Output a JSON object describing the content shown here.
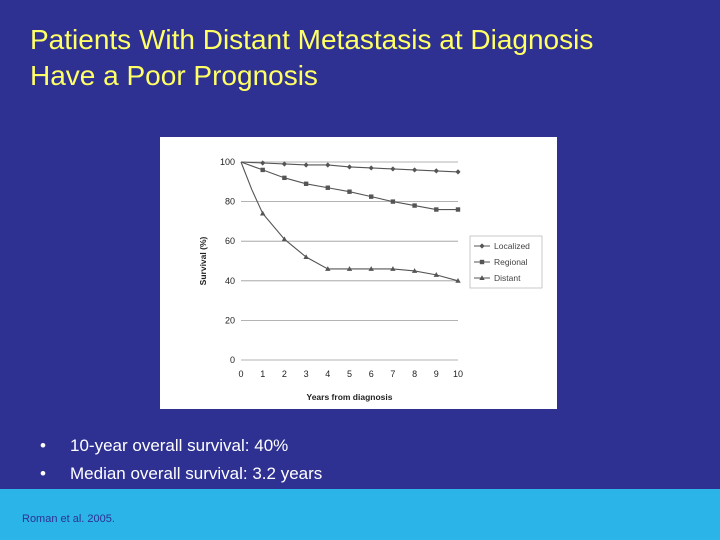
{
  "slide": {
    "title_lines": [
      "Patients With Distant Metastasis at Diagnosis",
      "Have a Poor Prognosis"
    ],
    "bullets": [
      "10-year overall survival: 40%",
      "Median overall survival: 3.2 years"
    ],
    "bullet_symbol": "•",
    "citation": "Roman et al. 2005.",
    "colors": {
      "background": "#2e3192",
      "title": "#ffff66",
      "footer": "#2ab4e8",
      "text": "#ffffff"
    }
  },
  "chart_data": {
    "type": "line",
    "x": [
      0,
      1,
      2,
      3,
      4,
      5,
      6,
      7,
      8,
      9,
      10
    ],
    "xticks": [
      "0",
      "1",
      "2",
      "3",
      "4",
      "5",
      "6",
      "7",
      "8",
      "9",
      "10"
    ],
    "yticks": [
      "0",
      "20",
      "40",
      "60",
      "80",
      "100"
    ],
    "xlabel": "Years from diagnosis",
    "ylabel": "Survival (%)",
    "xlim": [
      0,
      10
    ],
    "ylim": [
      0,
      100
    ],
    "grid": "horizontal",
    "legend_position": "right",
    "series": [
      {
        "name": "Localized",
        "marker": "diamond",
        "x": [
          0,
          1,
          2,
          3,
          4,
          5,
          6,
          7,
          8,
          9,
          10
        ],
        "values": [
          100,
          99.5,
          99,
          98.5,
          98.5,
          97.5,
          97,
          96.5,
          96,
          95.5,
          95
        ]
      },
      {
        "name": "Regional",
        "marker": "square",
        "x": [
          0,
          1,
          2,
          3,
          4,
          5,
          6,
          7,
          8,
          9,
          10
        ],
        "values": [
          100,
          96,
          92,
          89,
          87,
          85,
          82.5,
          80,
          78,
          76,
          76
        ]
      },
      {
        "name": "Distant",
        "marker": "triangle",
        "x": [
          0,
          0.5,
          1,
          2,
          3,
          4,
          5,
          6,
          7,
          8,
          9,
          10
        ],
        "values": [
          100,
          86,
          74,
          61,
          52,
          46,
          46,
          46,
          46,
          45,
          43,
          40
        ]
      }
    ]
  }
}
